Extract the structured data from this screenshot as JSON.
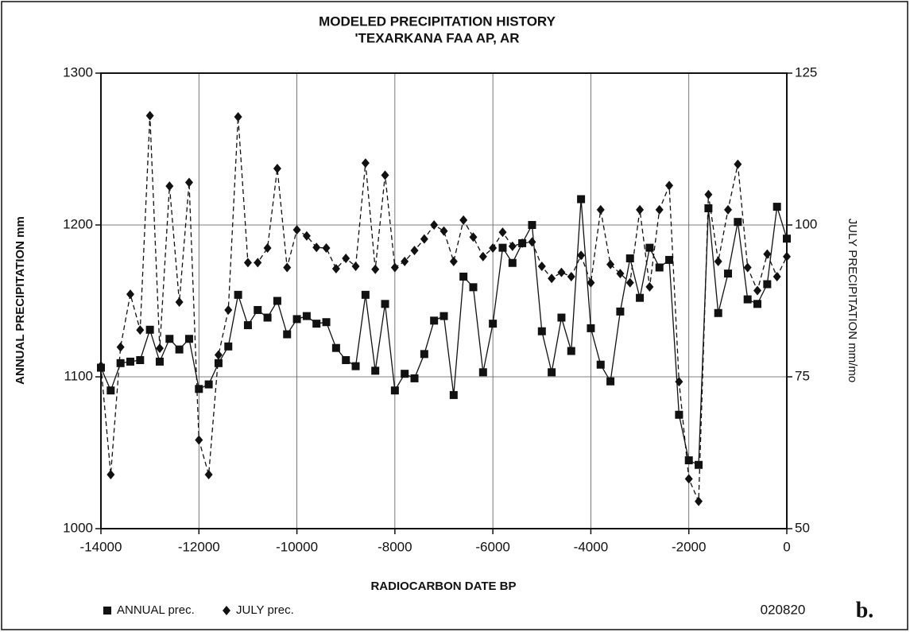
{
  "chart_data": {
    "type": "line",
    "title": "MODELED PRECIPITATION HISTORY",
    "subtitle": "'TEXARKANA FAA AP, AR",
    "x_label": "RADIOCARBON DATE BP",
    "y_label": "ANNUAL PRECIPITATION mm",
    "y2_label": "JULY PRECIPITATION mm/mo",
    "x": [
      -14000,
      -13800,
      -13600,
      -13400,
      -13200,
      -13000,
      -12800,
      -12600,
      -12400,
      -12200,
      -12000,
      -11800,
      -11600,
      -11400,
      -11200,
      -11000,
      -10800,
      -10600,
      -10400,
      -10200,
      -10000,
      -9800,
      -9600,
      -9400,
      -9200,
      -9000,
      -8800,
      -8600,
      -8400,
      -8200,
      -8000,
      -7800,
      -7600,
      -7400,
      -7200,
      -7000,
      -6800,
      -6600,
      -6400,
      -6200,
      -6000,
      -5800,
      -5600,
      -5400,
      -5200,
      -5000,
      -4800,
      -4600,
      -4400,
      -4200,
      -4000,
      -3800,
      -3600,
      -3400,
      -3200,
      -3000,
      -2800,
      -2600,
      -2400,
      -2200,
      -2000,
      -1800,
      -1600,
      -1400,
      -1200,
      -1000,
      -800,
      -600,
      -400,
      -200,
      0
    ],
    "series": [
      {
        "name": "ANNUAL prec.",
        "color": "#111111",
        "line_style": "solid",
        "marker": "square",
        "values": [
          1106,
          1091,
          1109,
          1110,
          1111,
          1131,
          1110,
          1125,
          1118,
          1125,
          1092,
          1095,
          1109,
          1120,
          1154,
          1134,
          1144,
          1139,
          1150,
          1128,
          1138,
          1140,
          1135,
          1136,
          1119,
          1111,
          1107,
          1154,
          1104,
          1148,
          1091,
          1102,
          1099,
          1115,
          1137,
          1140,
          1088,
          1166,
          1159,
          1103,
          1135,
          1185,
          1175,
          1188,
          1200,
          1130,
          1103,
          1139,
          1117,
          1217,
          1132,
          1108,
          1097,
          1143,
          1178,
          1152,
          1185,
          1172,
          1177,
          1075,
          1045,
          1042,
          1211,
          1142,
          1168,
          1202,
          1151,
          1148,
          1161,
          1212,
          1191
        ]
      },
      {
        "name": "JULY prec.",
        "color": "#111111",
        "line_style": "dashed",
        "marker": "diamond",
        "axis": "y2",
        "values": [
          76.8,
          58.9,
          79.9,
          88.6,
          82.7,
          118,
          79.7,
          106.4,
          87.3,
          107,
          64.6,
          58.9,
          78.6,
          86,
          117.8,
          93.8,
          93.8,
          96.2,
          109.3,
          93,
          99.2,
          98.2,
          96.3,
          96.2,
          92.8,
          94.5,
          93.2,
          110.2,
          92.7,
          108.2,
          93,
          94,
          95.8,
          97.7,
          100,
          99,
          94,
          100.8,
          98,
          94.8,
          96.2,
          98.8,
          96.5,
          97,
          97.2,
          93.2,
          91.2,
          92.2,
          91.5,
          95,
          90.5,
          102.5,
          93.5,
          92,
          90.5,
          102.5,
          89.8,
          102.5,
          106.5,
          74.2,
          58.2,
          54.5,
          105,
          94,
          102.5,
          110,
          93,
          89.2,
          95.2,
          91.5,
          94.8
        ]
      }
    ],
    "xlim": [
      -14000,
      0
    ],
    "xticks": [
      -14000,
      -12000,
      -10000,
      -8000,
      -6000,
      -4000,
      -2000,
      0
    ],
    "ylim": [
      1000,
      1300
    ],
    "yticks": [
      1000,
      1100,
      1200,
      1300
    ],
    "y2lim": [
      50,
      125
    ],
    "y2ticks": [
      50,
      75,
      100,
      125
    ],
    "grid": true,
    "legend": "bottom left",
    "annotations": [
      "020820",
      "b."
    ]
  }
}
